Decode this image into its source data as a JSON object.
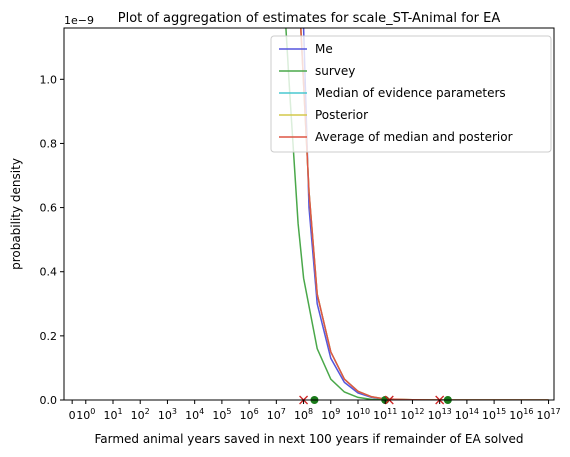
{
  "chart_data": {
    "type": "line",
    "title": "Plot of aggregation of estimates for scale_ST-Animal for EA",
    "xlabel": "Farmed animal years saved in next 100 years if remainder of EA solved",
    "ylabel": "probability density",
    "y_offset_text": "1e−9",
    "xscale": "symlog",
    "xticks": [
      {
        "value": 0,
        "label": "0"
      },
      {
        "value": 1,
        "label": "10^0"
      },
      {
        "value": 10,
        "label": "10^1"
      },
      {
        "value": 100,
        "label": "10^2"
      },
      {
        "value": 1000,
        "label": "10^3"
      },
      {
        "value": 10000,
        "label": "10^4"
      },
      {
        "value": 100000,
        "label": "10^5"
      },
      {
        "value": 1000000,
        "label": "10^6"
      },
      {
        "value": 10000000,
        "label": "10^7"
      },
      {
        "value": 100000000,
        "label": "10^8"
      },
      {
        "value": 1000000000,
        "label": "10^9"
      },
      {
        "value": 10000000000,
        "label": "10^10"
      },
      {
        "value": 100000000000,
        "label": "10^11"
      },
      {
        "value": 1000000000000,
        "label": "10^12"
      },
      {
        "value": 10000000000000,
        "label": "10^13"
      },
      {
        "value": 100000000000000,
        "label": "10^14"
      },
      {
        "value": 1000000000000000,
        "label": "10^15"
      },
      {
        "value": 10000000000000000,
        "label": "10^16"
      },
      {
        "value": 100000000000000000,
        "label": "10^17"
      }
    ],
    "yticks": [
      "0.0",
      "0.2",
      "0.4",
      "0.6",
      "0.8",
      "1.0"
    ],
    "ylim": [
      0,
      1.16
    ],
    "xlim_log10": [
      -0.8,
      17.2
    ],
    "legend_position": "top-right",
    "series": [
      {
        "name": "Me",
        "color": "#5555dd",
        "points": [
          [
            8.0,
            1.16
          ],
          [
            8.2,
            0.6
          ],
          [
            8.5,
            0.3
          ],
          [
            9.0,
            0.13
          ],
          [
            9.5,
            0.055
          ],
          [
            10.0,
            0.022
          ],
          [
            10.5,
            0.008
          ],
          [
            11.0,
            0.002
          ],
          [
            12.0,
            0.0003
          ],
          [
            13.0,
            0.0
          ],
          [
            17.0,
            0.0
          ]
        ]
      },
      {
        "name": "survey",
        "color": "#4aa84a",
        "points": [
          [
            7.35,
            1.16
          ],
          [
            7.5,
            0.95
          ],
          [
            7.8,
            0.55
          ],
          [
            8.0,
            0.38
          ],
          [
            8.5,
            0.16
          ],
          [
            9.0,
            0.065
          ],
          [
            9.5,
            0.025
          ],
          [
            10.0,
            0.008
          ],
          [
            10.5,
            0.002
          ],
          [
            11.0,
            0.0004
          ],
          [
            12.0,
            0.0
          ],
          [
            17.0,
            0.0
          ]
        ]
      },
      {
        "name": "Median of evidence parameters",
        "color": "#48c8d0",
        "points": [
          [
            7.9,
            1.16
          ],
          [
            8.2,
            0.65
          ],
          [
            8.5,
            0.33
          ],
          [
            9.0,
            0.15
          ],
          [
            9.5,
            0.065
          ],
          [
            10.0,
            0.027
          ],
          [
            10.5,
            0.01
          ],
          [
            11.0,
            0.003
          ],
          [
            12.0,
            0.0005
          ],
          [
            13.0,
            0.0
          ],
          [
            17.0,
            0.0
          ]
        ]
      },
      {
        "name": "Posterior",
        "color": "#d4c84a",
        "points": [
          [
            7.9,
            1.16
          ],
          [
            8.2,
            0.65
          ],
          [
            8.5,
            0.33
          ],
          [
            9.0,
            0.15
          ],
          [
            9.5,
            0.065
          ],
          [
            10.0,
            0.027
          ],
          [
            10.5,
            0.01
          ],
          [
            11.0,
            0.003
          ],
          [
            12.0,
            0.0005
          ],
          [
            13.0,
            0.0
          ],
          [
            17.0,
            0.0
          ]
        ]
      },
      {
        "name": "Average of median and posterior",
        "color": "#dd5544",
        "points": [
          [
            7.9,
            1.16
          ],
          [
            8.2,
            0.65
          ],
          [
            8.5,
            0.33
          ],
          [
            9.0,
            0.15
          ],
          [
            9.5,
            0.065
          ],
          [
            10.0,
            0.027
          ],
          [
            10.5,
            0.01
          ],
          [
            11.0,
            0.003
          ],
          [
            12.0,
            0.0005
          ],
          [
            13.0,
            0.0
          ],
          [
            17.0,
            0.0
          ]
        ]
      }
    ],
    "markers": [
      {
        "shape": "x",
        "color": "#cc2222",
        "x_log10": 8.0,
        "y": 0.0
      },
      {
        "shape": "circle",
        "color": "#1a7a1a",
        "x_log10": 8.4,
        "y": 0.0
      },
      {
        "shape": "circle",
        "color": "#1a7a1a",
        "x_log10": 11.0,
        "y": 0.0
      },
      {
        "shape": "x",
        "color": "#cc2222",
        "x_log10": 11.15,
        "y": 0.0
      },
      {
        "shape": "x",
        "color": "#cc2222",
        "x_log10": 13.0,
        "y": 0.0
      },
      {
        "shape": "circle",
        "color": "#1a7a1a",
        "x_log10": 13.3,
        "y": 0.0
      }
    ]
  }
}
